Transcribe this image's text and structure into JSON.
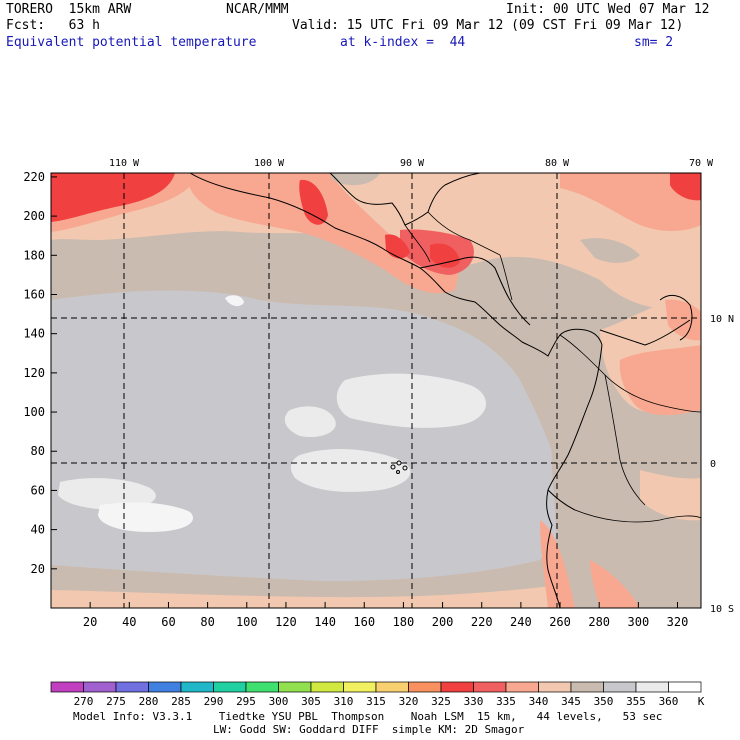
{
  "header": {
    "model": "TORERO  15km ARW",
    "center": "NCAR/MMM",
    "init": "Init: 00 UTC Wed 07 Mar 12",
    "fcst": "Fcst:   63 h",
    "valid": "Valid: 15 UTC Fri 09 Mar 12 (09 CST Fri 09 Mar 12)",
    "field": "Equivalent potential temperature",
    "level": "at k-index =  44",
    "smooth": "sm= 2"
  },
  "map": {
    "lon_labels": [
      "110 W",
      "100 W",
      "90 W",
      "80 W",
      "70 W"
    ],
    "lat_labels": [
      "10 N",
      "0",
      "10 S"
    ],
    "x_ticks": [
      "20",
      "40",
      "60",
      "80",
      "100",
      "120",
      "140",
      "160",
      "180",
      "200",
      "220",
      "240",
      "260",
      "280",
      "300",
      "320"
    ],
    "y_ticks": [
      "220",
      "200",
      "180",
      "160",
      "140",
      "120",
      "100",
      "80",
      "60",
      "40",
      "20"
    ]
  },
  "colorbar": {
    "labels": [
      "270",
      "275",
      "280",
      "285",
      "290",
      "295",
      "300",
      "305",
      "310",
      "315",
      "320",
      "325",
      "330",
      "335",
      "340",
      "345",
      "350",
      "355",
      "360"
    ],
    "unit": "K",
    "colors": [
      "#c040c0",
      "#a060d0",
      "#7070e0",
      "#4080e0",
      "#20b8c8",
      "#20d0a0",
      "#40e070",
      "#90e050",
      "#d0e840",
      "#f0f060",
      "#f8d070",
      "#f89060",
      "#f04040",
      "#f06060",
      "#f8a890",
      "#f2c8b0",
      "#cabbb0",
      "#c8c8cc",
      "#ebebeb",
      "#ffffff"
    ]
  },
  "footer": {
    "line1": "Model Info: V3.3.1    Tiedtke YSU PBL  Thompson    Noah LSM  15 km,   44 levels,   53 sec",
    "line2": "LW: Godd SW: Goddard DIFF  simple KM: 2D Smagor"
  }
}
